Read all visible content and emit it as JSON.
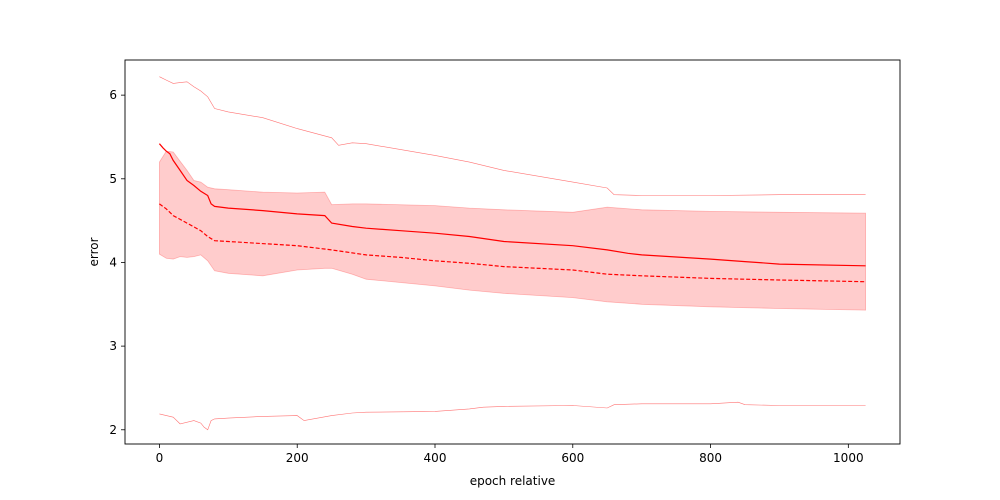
{
  "chart_data": {
    "type": "line",
    "title": "",
    "xlabel": "epoch relative",
    "ylabel": "error",
    "xlim": [
      -50,
      1075
    ],
    "ylim": [
      1.83,
      6.42
    ],
    "xticks": [
      0,
      200,
      400,
      600,
      800,
      1000
    ],
    "yticks": [
      2,
      3,
      4,
      5,
      6
    ],
    "grid": false,
    "legend": "none",
    "colors": {
      "line": "#ff0000",
      "band": "#ff0000"
    },
    "series": [
      {
        "style": "solid",
        "x": [
          0,
          5,
          10,
          15,
          20,
          30,
          40,
          50,
          60,
          70,
          75,
          80,
          100,
          150,
          200,
          240,
          250,
          280,
          300,
          350,
          400,
          450,
          500,
          600,
          650,
          680,
          700,
          800,
          850,
          900,
          1025
        ],
        "values": [
          5.42,
          5.37,
          5.33,
          5.3,
          5.22,
          5.1,
          4.98,
          4.92,
          4.85,
          4.8,
          4.7,
          4.67,
          4.65,
          4.62,
          4.58,
          4.56,
          4.47,
          4.43,
          4.41,
          4.38,
          4.35,
          4.31,
          4.25,
          4.2,
          4.15,
          4.11,
          4.09,
          4.04,
          4.01,
          3.98,
          3.96
        ]
      },
      {
        "style": "dashed",
        "x": [
          0,
          10,
          20,
          40,
          60,
          70,
          80,
          100,
          200,
          250,
          300,
          350,
          400,
          450,
          500,
          600,
          650,
          700,
          800,
          900,
          1025
        ],
        "values": [
          4.7,
          4.64,
          4.56,
          4.47,
          4.38,
          4.31,
          4.26,
          4.25,
          4.2,
          4.15,
          4.09,
          4.06,
          4.02,
          3.99,
          3.95,
          3.91,
          3.86,
          3.84,
          3.81,
          3.79,
          3.77
        ]
      }
    ],
    "band": {
      "x": [
        0,
        10,
        20,
        30,
        40,
        50,
        60,
        70,
        80,
        100,
        150,
        200,
        240,
        250,
        280,
        300,
        400,
        450,
        500,
        600,
        650,
        700,
        800,
        900,
        1025
      ],
      "upper": [
        5.2,
        5.33,
        5.32,
        5.21,
        5.1,
        4.98,
        4.96,
        4.9,
        4.88,
        4.87,
        4.84,
        4.83,
        4.84,
        4.69,
        4.7,
        4.7,
        4.68,
        4.65,
        4.63,
        4.6,
        4.66,
        4.63,
        4.61,
        4.6,
        4.59
      ],
      "lower": [
        4.1,
        4.05,
        4.04,
        4.07,
        4.06,
        4.07,
        4.09,
        4.02,
        3.9,
        3.87,
        3.84,
        3.91,
        3.93,
        3.93,
        3.86,
        3.8,
        3.72,
        3.67,
        3.63,
        3.58,
        3.53,
        3.5,
        3.47,
        3.45,
        3.43
      ]
    },
    "extremes": [
      {
        "x": [
          0,
          10,
          20,
          30,
          40,
          50,
          60,
          70,
          80,
          100,
          150,
          200,
          250,
          260,
          280,
          300,
          400,
          450,
          500,
          600,
          650,
          660,
          700,
          800,
          900,
          1025
        ],
        "values": [
          6.22,
          6.18,
          6.14,
          6.15,
          6.16,
          6.1,
          6.05,
          5.98,
          5.84,
          5.8,
          5.73,
          5.6,
          5.49,
          5.4,
          5.43,
          5.42,
          5.28,
          5.2,
          5.1,
          4.96,
          4.89,
          4.81,
          4.8,
          4.8,
          4.81,
          4.81
        ]
      },
      {
        "x": [
          0,
          20,
          30,
          50,
          60,
          65,
          70,
          75,
          80,
          100,
          150,
          200,
          210,
          250,
          280,
          300,
          400,
          450,
          470,
          500,
          600,
          650,
          660,
          700,
          800,
          840,
          850,
          900,
          1025
        ],
        "values": [
          2.19,
          2.15,
          2.07,
          2.11,
          2.08,
          2.03,
          2.0,
          2.11,
          2.13,
          2.14,
          2.16,
          2.17,
          2.11,
          2.17,
          2.2,
          2.21,
          2.22,
          2.25,
          2.27,
          2.28,
          2.29,
          2.26,
          2.3,
          2.31,
          2.31,
          2.33,
          2.3,
          2.29,
          2.29
        ]
      }
    ]
  }
}
